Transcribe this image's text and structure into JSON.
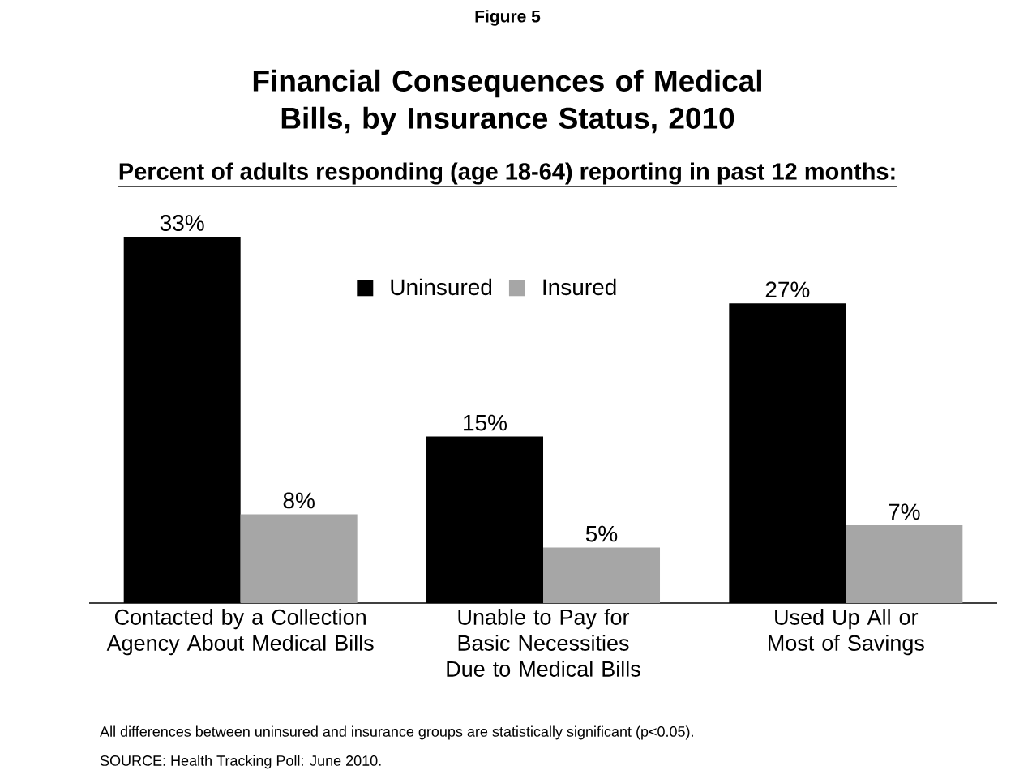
{
  "chart_data": {
    "type": "bar",
    "title": "Financial Consequences of Medical Bills, by Insurance Status, 2010",
    "subtitle": "Percent of adults responding (age 18-64) reporting in past 12 months:",
    "categories": [
      "Contacted by a Collection Agency About Medical Bills",
      "Unable to Pay for Basic Necessities Due to Medical Bills",
      "Used Up All or Most of Savings"
    ],
    "series": [
      {
        "name": "Uninsured",
        "color": "#000000",
        "values": [
          33,
          15,
          27
        ],
        "value_labels": [
          "33%",
          "15%",
          "27%"
        ]
      },
      {
        "name": "Insured",
        "color": "#a6a6a6",
        "values": [
          8,
          5,
          7
        ],
        "value_labels": [
          "8%",
          "5%",
          "7%"
        ]
      }
    ],
    "legend": "top",
    "grid": false,
    "annotations": [
      "Figure 5",
      "All differences between uninsured and insurance groups are statistically significant (p<0.05).",
      "SOURCE: Health Tracking Poll: June 2010."
    ]
  }
}
